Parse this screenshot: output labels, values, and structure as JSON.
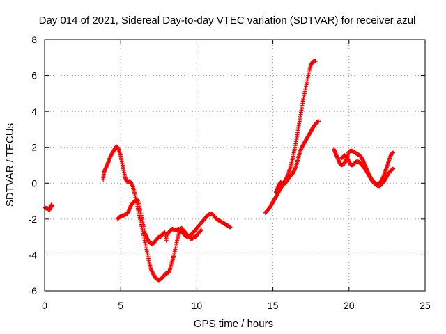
{
  "chart_data": {
    "type": "scatter",
    "title": "Day 014 of 2021, Sidereal Day-to-day VTEC variation (SDTVAR) for receiver azul",
    "xlabel": "GPS time / hours",
    "ylabel": "SDTVAR / TECUs",
    "xlim": [
      0,
      25
    ],
    "ylim": [
      -6,
      8
    ],
    "xticks": [
      "0",
      "5",
      "10",
      "15",
      "20",
      "25"
    ],
    "yticks": [
      "-6",
      "-4",
      "-2",
      "0",
      "2",
      "4",
      "6",
      "8"
    ],
    "grid": true,
    "marker": "plus",
    "color": "#ff0000",
    "series": [
      {
        "x": [
          0.0,
          0.1,
          0.2,
          0.3,
          0.35,
          0.4,
          0.45,
          0.5
        ],
        "y": [
          -1.35,
          -1.4,
          -1.4,
          -1.5,
          -1.45,
          -1.3,
          -1.2,
          -1.3
        ]
      },
      {
        "x": [
          3.85,
          3.9,
          4.0,
          4.1,
          4.2,
          4.3,
          4.4,
          4.5,
          4.6,
          4.7,
          4.8,
          4.9,
          5.0,
          5.1,
          5.2,
          5.3,
          5.4,
          5.5,
          5.6,
          5.7,
          5.8,
          5.9,
          6.0,
          6.1,
          6.2,
          6.3,
          6.4,
          6.5,
          6.6,
          6.7,
          6.8,
          6.9,
          7.0,
          7.1,
          7.2,
          7.3,
          7.4,
          7.5,
          7.6,
          7.7,
          7.8,
          7.9,
          8.0,
          8.1,
          8.2,
          8.3,
          8.4,
          8.5,
          8.6,
          8.7,
          8.8,
          8.9,
          9.0,
          9.1,
          9.2,
          9.3,
          9.4,
          9.5,
          9.6,
          9.7,
          9.8,
          9.9,
          10.0,
          10.1,
          10.2,
          10.3
        ],
        "y": [
          0.2,
          0.6,
          0.8,
          1.0,
          1.2,
          1.45,
          1.6,
          1.75,
          1.9,
          2.05,
          2.0,
          1.8,
          1.5,
          1.1,
          0.7,
          0.3,
          0.1,
          0.1,
          0.1,
          0.0,
          -0.2,
          -0.5,
          -0.9,
          -1.3,
          -1.7,
          -2.1,
          -2.5,
          -2.9,
          -3.3,
          -3.7,
          -4.1,
          -4.5,
          -4.8,
          -5.0,
          -5.15,
          -5.3,
          -5.35,
          -5.4,
          -5.35,
          -5.3,
          -5.2,
          -5.1,
          -5.0,
          -5.0,
          -4.9,
          -4.6,
          -4.3,
          -4.0,
          -3.6,
          -3.2,
          -2.9,
          -2.6,
          -2.5,
          -2.6,
          -2.7,
          -2.8,
          -2.9,
          -3.0,
          -3.1,
          -3.1,
          -3.0,
          -3.0,
          -2.9,
          -2.8,
          -2.7,
          -2.6
        ]
      },
      {
        "x": [
          4.8,
          4.9,
          5.0,
          5.1,
          5.2,
          5.3,
          5.4,
          5.5,
          5.6,
          5.7,
          5.8,
          5.9,
          6.0,
          6.1,
          6.2,
          6.3,
          6.4,
          6.5,
          6.6,
          6.7,
          6.8,
          6.9,
          7.0,
          7.1,
          7.2,
          7.3,
          7.4,
          7.5,
          7.6,
          7.7,
          7.8,
          7.9,
          8.0,
          8.1,
          8.2,
          8.3,
          8.4,
          8.5,
          8.6,
          8.7,
          8.8,
          8.9,
          9.0,
          9.1,
          9.2,
          9.3,
          9.4,
          9.5,
          9.6,
          9.7,
          9.8,
          9.9,
          10.0,
          10.1,
          10.2,
          10.3,
          10.4,
          10.5,
          10.6,
          10.7,
          10.8,
          10.9,
          11.0,
          11.1,
          11.2,
          11.3,
          11.4,
          11.5,
          11.6,
          11.7,
          11.8,
          11.9,
          12.0,
          12.1,
          12.2
        ],
        "y": [
          -2.0,
          -1.9,
          -1.85,
          -1.8,
          -1.8,
          -1.75,
          -1.7,
          -1.6,
          -1.4,
          -1.2,
          -1.1,
          -1.0,
          -1.0,
          -0.9,
          -1.2,
          -1.6,
          -2.0,
          -2.4,
          -2.8,
          -3.0,
          -3.2,
          -3.3,
          -3.35,
          -3.4,
          -3.3,
          -3.2,
          -3.1,
          -3.0,
          -3.0,
          -2.9,
          -2.8,
          -2.75,
          -3.2,
          -2.8,
          -2.7,
          -2.6,
          -2.55,
          -2.6,
          -2.6,
          -2.6,
          -2.55,
          -2.6,
          -2.7,
          -2.8,
          -2.9,
          -2.95,
          -3.0,
          -3.0,
          -2.9,
          -2.8,
          -2.7,
          -2.65,
          -2.5,
          -2.4,
          -2.3,
          -2.2,
          -2.1,
          -2.0,
          -1.9,
          -1.8,
          -1.75,
          -1.7,
          -1.7,
          -1.8,
          -1.9,
          -2.0,
          -2.05,
          -2.1,
          -2.15,
          -2.2,
          -2.25,
          -2.3,
          -2.35,
          -2.4,
          -2.45
        ]
      },
      {
        "x": [
          14.5,
          14.6,
          14.7,
          14.8,
          14.9,
          15.0,
          15.1,
          15.2,
          15.3,
          15.4,
          15.5,
          15.6,
          15.7,
          15.8,
          15.9,
          16.0,
          16.1,
          16.2,
          16.3,
          16.4,
          16.5,
          16.6,
          16.7,
          16.8,
          16.9,
          17.0,
          17.1,
          17.2,
          17.3,
          17.4,
          17.5,
          17.6,
          17.7,
          17.8
        ],
        "y": [
          -1.65,
          -1.55,
          -1.45,
          -1.35,
          -1.2,
          -1.05,
          -0.9,
          -0.75,
          -0.6,
          -0.45,
          -0.3,
          -0.15,
          0.0,
          0.15,
          0.3,
          0.5,
          0.75,
          1.05,
          1.4,
          1.8,
          2.2,
          2.7,
          3.2,
          3.7,
          4.2,
          4.7,
          5.1,
          5.5,
          5.9,
          6.3,
          6.6,
          6.75,
          6.8,
          6.8
        ]
      },
      {
        "x": [
          15.2,
          15.3,
          15.4,
          15.5,
          15.6,
          15.7,
          15.8,
          15.9,
          16.0,
          16.1,
          16.2,
          16.3,
          16.4,
          16.5,
          16.6,
          16.7,
          16.8,
          16.9,
          17.0,
          17.1,
          17.2,
          17.3,
          17.4,
          17.5,
          17.6,
          17.7,
          17.8,
          17.9,
          18.0
        ],
        "y": [
          -0.5,
          -0.3,
          -0.1,
          0.05,
          0.0,
          -0.1,
          0.0,
          0.1,
          0.25,
          0.35,
          0.45,
          0.55,
          0.7,
          0.9,
          1.2,
          1.5,
          1.8,
          2.0,
          2.15,
          2.3,
          2.45,
          2.6,
          2.75,
          2.9,
          3.05,
          3.2,
          3.3,
          3.4,
          3.45
        ]
      },
      {
        "x": [
          19.0,
          19.1,
          19.2,
          19.3,
          19.4,
          19.5,
          19.6,
          19.7,
          19.8,
          19.9,
          20.0,
          20.1,
          20.2,
          20.3,
          20.4,
          20.5,
          20.6,
          20.7,
          20.8,
          20.9,
          21.0,
          21.1,
          21.2,
          21.3,
          21.4,
          21.5,
          21.6,
          21.7,
          21.8,
          21.9,
          22.0,
          22.1,
          22.2,
          22.3,
          22.4,
          22.5,
          22.6,
          22.7,
          22.8,
          22.9
        ],
        "y": [
          1.9,
          1.7,
          1.5,
          1.3,
          1.1,
          1.0,
          1.05,
          1.1,
          1.3,
          1.5,
          1.75,
          1.8,
          1.8,
          1.75,
          1.7,
          1.65,
          1.6,
          1.55,
          1.45,
          1.3,
          1.1,
          0.9,
          0.7,
          0.5,
          0.35,
          0.2,
          0.1,
          0.0,
          -0.05,
          -0.05,
          0.0,
          0.1,
          0.25,
          0.45,
          0.7,
          0.95,
          1.2,
          1.45,
          1.65,
          1.7
        ]
      },
      {
        "x": [
          19.5,
          19.6,
          19.7,
          19.8,
          19.9,
          20.0,
          20.1,
          20.2,
          20.3,
          20.4,
          20.5,
          20.6,
          20.7,
          20.8,
          20.9,
          21.0,
          21.1,
          21.2,
          21.3,
          21.4,
          21.5,
          21.6,
          21.7,
          21.8,
          21.9,
          22.0,
          22.1,
          22.2,
          22.3,
          22.4,
          22.5,
          22.6,
          22.7,
          22.8,
          22.9
        ],
        "y": [
          1.4,
          1.45,
          1.55,
          1.5,
          1.4,
          1.2,
          1.05,
          1.0,
          1.05,
          1.15,
          1.2,
          1.2,
          1.15,
          1.05,
          0.95,
          0.85,
          0.75,
          0.6,
          0.45,
          0.3,
          0.15,
          0.05,
          -0.05,
          -0.1,
          -0.15,
          -0.15,
          -0.1,
          0.0,
          0.1,
          0.25,
          0.4,
          0.55,
          0.65,
          0.75,
          0.8
        ]
      }
    ]
  }
}
